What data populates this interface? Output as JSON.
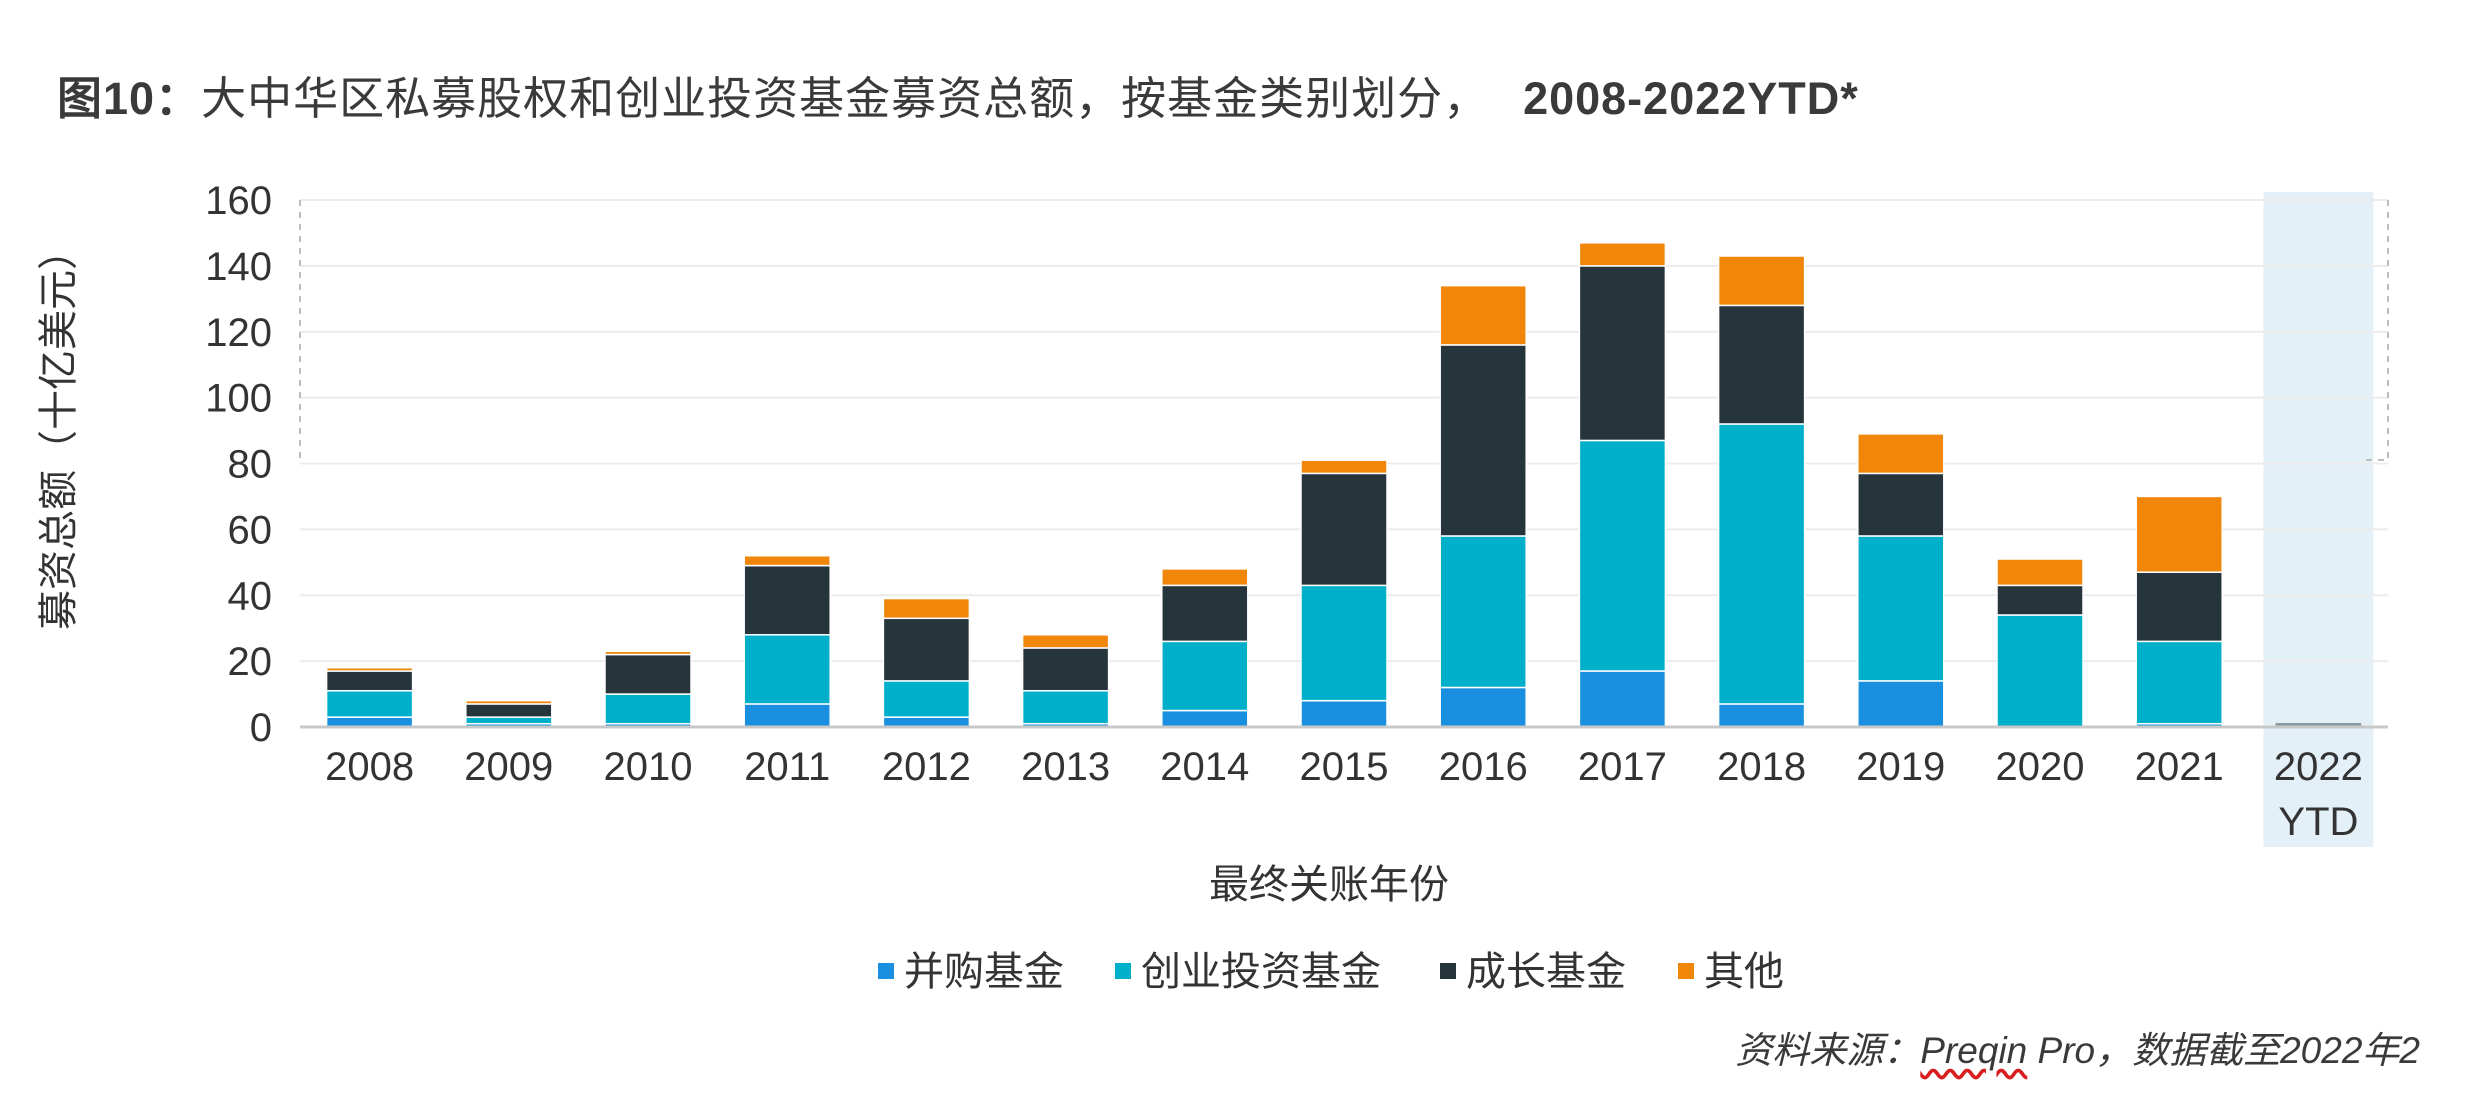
{
  "title": {
    "prefix": "图10：",
    "text": "大中华区私募股权和创业投资基金募资总额，按基金类别划分，",
    "years": "2008-2022YTD*"
  },
  "source": {
    "pre": "资料来源：",
    "link": "Preqin",
    "post": " Pro，数据截至2022年2"
  },
  "colors": {
    "buyout": "#1a8fe0",
    "venture": "#00afc9",
    "growth": "#26343c",
    "other": "#f0870a",
    "ytd_band": "#e3f0f8"
  },
  "chart_data": {
    "type": "bar",
    "stacked": true,
    "categories": [
      "2008",
      "2009",
      "2010",
      "2011",
      "2012",
      "2013",
      "2014",
      "2015",
      "2016",
      "2017",
      "2018",
      "2019",
      "2020",
      "2021",
      "2022 YTD"
    ],
    "series": [
      {
        "name": "并购基金",
        "color": "#1a8fe0",
        "values": [
          3,
          1,
          1,
          7,
          3,
          1,
          5,
          8,
          12,
          17,
          7,
          14,
          0,
          1,
          0
        ]
      },
      {
        "name": "创业投资基金",
        "color": "#00afc9",
        "values": [
          8,
          2,
          9,
          21,
          11,
          10,
          21,
          35,
          46,
          70,
          85,
          44,
          34,
          25,
          1
        ]
      },
      {
        "name": "成长基金",
        "color": "#26343c",
        "values": [
          6,
          4,
          12,
          21,
          19,
          13,
          17,
          34,
          58,
          53,
          36,
          19,
          9,
          21,
          0
        ]
      },
      {
        "name": "其他",
        "color": "#f0870a",
        "values": [
          1,
          1,
          1,
          3,
          6,
          4,
          5,
          4,
          18,
          7,
          15,
          12,
          8,
          23,
          0
        ]
      }
    ],
    "ylabel": "募资总额（十亿美元）",
    "xlabel": "最终关账年份",
    "ylim": [
      0,
      160
    ],
    "yticks": [
      0,
      20,
      40,
      60,
      80,
      100,
      120,
      140,
      160
    ],
    "grid": true,
    "legend_position": "bottom",
    "highlight_category": "2022 YTD"
  }
}
